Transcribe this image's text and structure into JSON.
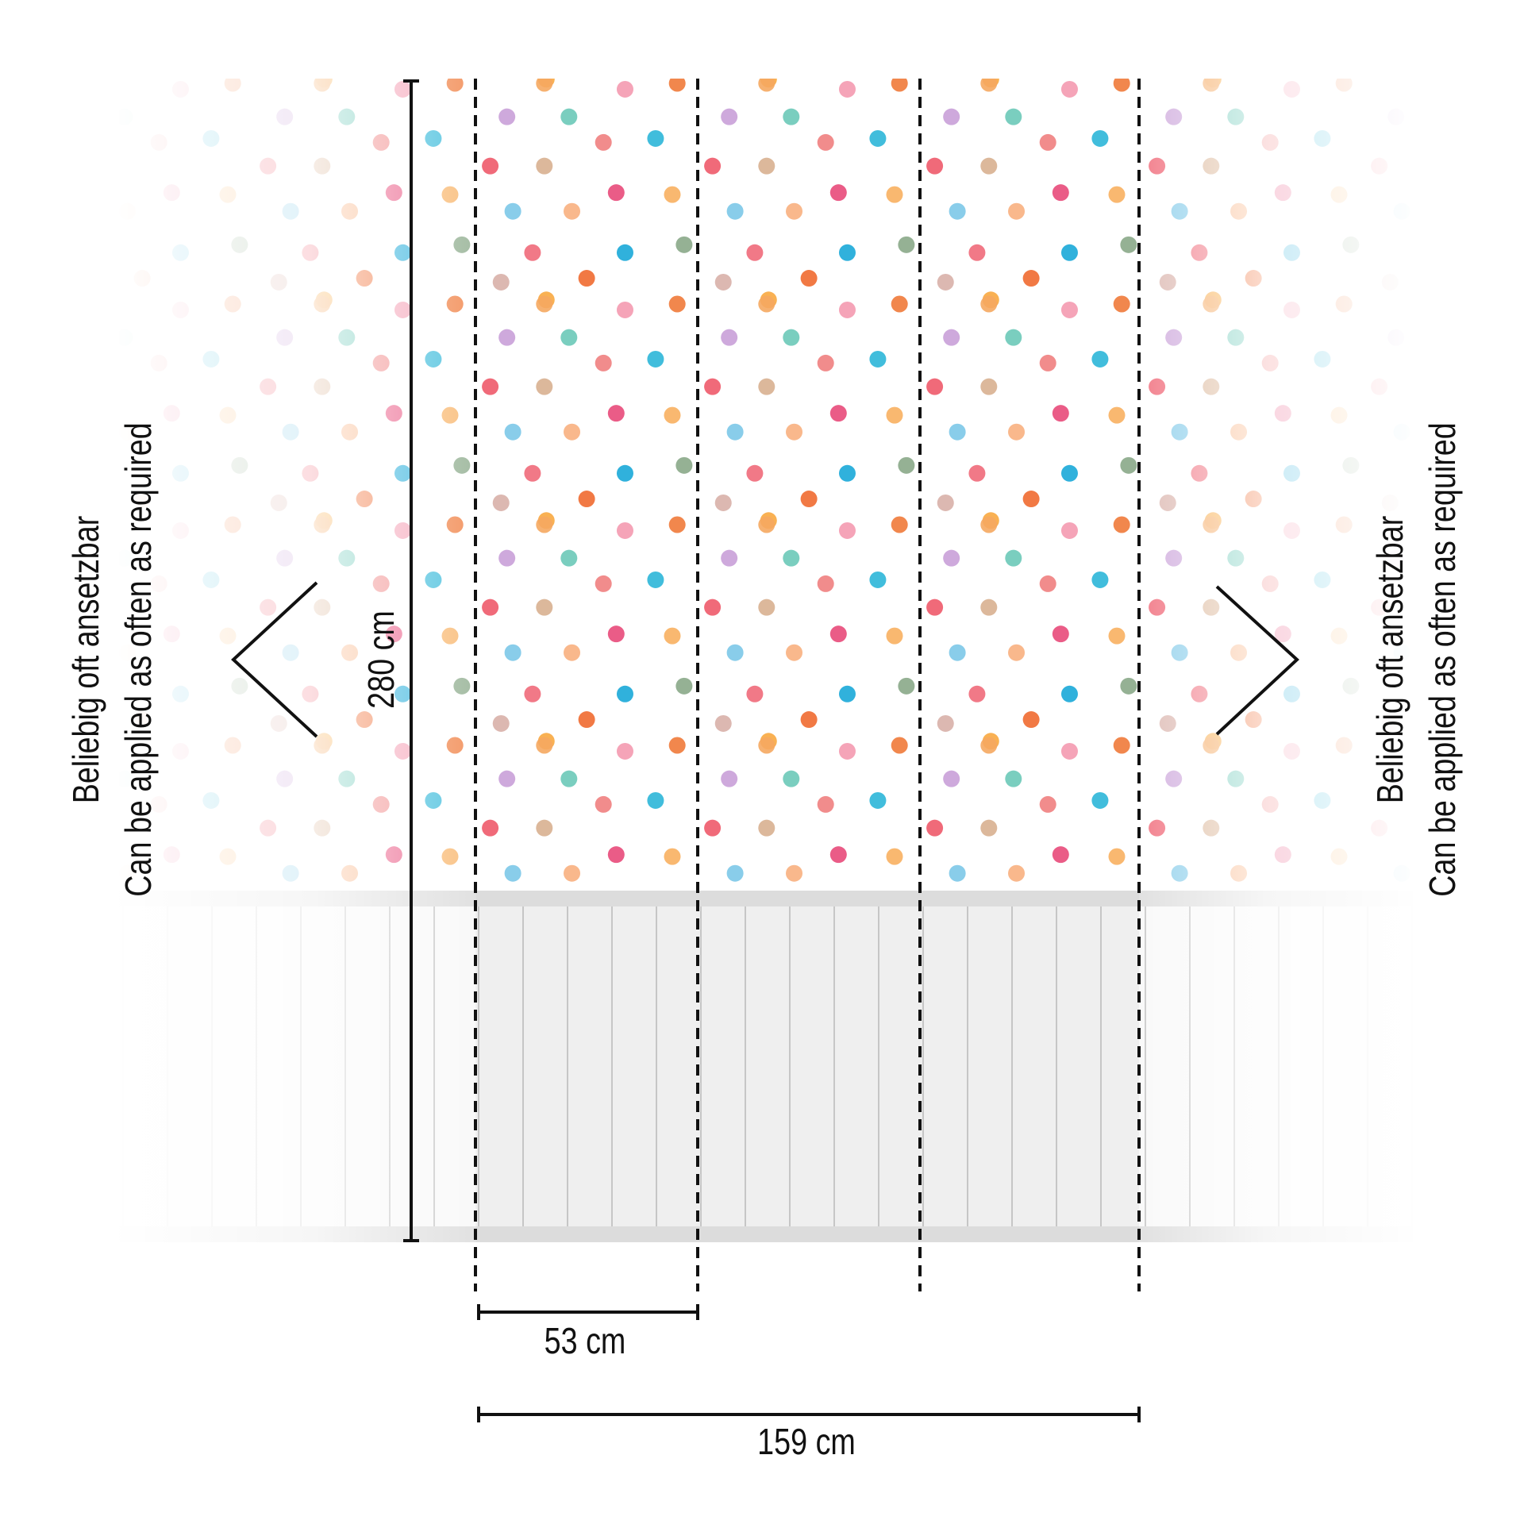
{
  "labels": {
    "left_de": "Beliebig oft ansetzbar",
    "left_en": "Can be applied as often as required",
    "right_de": "Beliebig oft ansetzbar",
    "right_en": "Can be applied as often as required",
    "height": "280 cm",
    "panel_width": "53 cm",
    "total_width": "159 cm"
  }
}
